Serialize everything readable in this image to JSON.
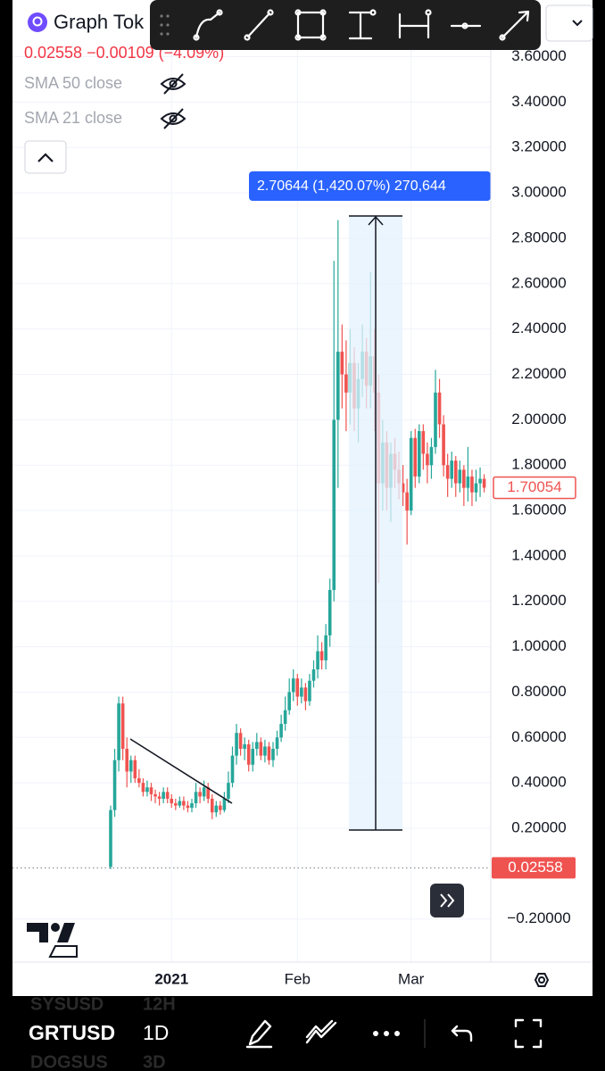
{
  "header": {
    "symbol": "Graph Tok",
    "quote": "0.02558 −0.00109 (−4.09%)",
    "indicators": [
      "SMA 50 close",
      "SMA 21 close"
    ]
  },
  "bottom_bar": {
    "symbol": "GRTUSD",
    "interval": "1D",
    "ghost_rows": [
      [
        "SYSUSD",
        "12H"
      ],
      [
        "DOGSUS",
        "3D"
      ]
    ]
  },
  "chart_data": {
    "type": "candlestick",
    "up_color": "#26a69a",
    "down_color": "#ef5350",
    "grid": true,
    "categories": [
      null,
      null,
      null,
      null,
      null,
      null,
      null,
      null,
      null,
      null,
      null,
      null,
      null,
      null,
      null,
      "2021",
      null,
      null,
      null,
      null,
      null,
      null,
      null,
      null,
      null,
      null,
      null,
      null,
      null,
      null,
      null,
      null,
      null,
      null,
      null,
      null,
      null,
      null,
      null,
      null,
      null,
      null,
      null,
      null,
      null,
      null,
      "Feb",
      null,
      null,
      null,
      null,
      null,
      null,
      null,
      null,
      null,
      null,
      null,
      null,
      null,
      null,
      null,
      null,
      null,
      null,
      null,
      null,
      null,
      null,
      null,
      null,
      null,
      null,
      null,
      "Mar",
      null,
      null,
      null,
      null,
      null,
      null,
      null,
      null,
      null,
      null,
      null,
      null,
      null,
      null,
      null,
      null,
      null,
      null
    ],
    "open": [
      0.03,
      0.28,
      0.5,
      0.75,
      0.55,
      0.45,
      0.5,
      0.42,
      0.4,
      0.36,
      0.38,
      0.35,
      0.34,
      0.33,
      0.36,
      0.33,
      0.31,
      0.3,
      0.32,
      0.3,
      0.29,
      0.31,
      0.36,
      0.34,
      0.38,
      0.33,
      0.27,
      0.3,
      0.28,
      0.33,
      0.4,
      0.52,
      0.62,
      0.55,
      0.57,
      0.48,
      0.55,
      0.58,
      0.52,
      0.56,
      0.5,
      0.55,
      0.6,
      0.66,
      0.72,
      0.8,
      0.86,
      0.78,
      0.82,
      0.76,
      0.85,
      0.9,
      0.98,
      0.94,
      1.05,
      1.25,
      2.0,
      2.3,
      2.2,
      2.12,
      2.25,
      2.05,
      2.18,
      2.3,
      2.15,
      2.28,
      2.12,
      1.72,
      1.9,
      1.7,
      1.85,
      1.78,
      1.72,
      1.68,
      1.6,
      1.92,
      1.75,
      1.95,
      1.85,
      1.8,
      1.88,
      2.12,
      1.98,
      1.8,
      1.74,
      1.82,
      1.72,
      1.78,
      1.7,
      1.75,
      1.68,
      1.72,
      1.74
    ],
    "high": [
      0.3,
      0.55,
      0.78,
      0.78,
      0.6,
      0.52,
      0.52,
      0.46,
      0.42,
      0.41,
      0.4,
      0.37,
      0.36,
      0.38,
      0.38,
      0.35,
      0.33,
      0.34,
      0.34,
      0.32,
      0.33,
      0.4,
      0.38,
      0.41,
      0.4,
      0.35,
      0.32,
      0.32,
      0.36,
      0.45,
      0.56,
      0.66,
      0.64,
      0.6,
      0.59,
      0.58,
      0.62,
      0.6,
      0.59,
      0.58,
      0.58,
      0.63,
      0.7,
      0.78,
      0.86,
      0.9,
      0.88,
      0.86,
      0.84,
      0.88,
      0.94,
      1.05,
      1.02,
      1.1,
      1.3,
      2.7,
      2.88,
      2.42,
      2.35,
      2.4,
      2.32,
      2.25,
      2.42,
      2.36,
      2.65,
      2.4,
      2.2,
      2.0,
      1.95,
      1.9,
      1.92,
      1.86,
      1.8,
      1.74,
      1.95,
      1.96,
      1.98,
      1.98,
      1.9,
      1.92,
      2.22,
      2.18,
      2.02,
      1.85,
      1.86,
      1.84,
      1.82,
      1.8,
      1.88,
      1.78,
      1.78,
      1.79,
      1.76
    ],
    "low": [
      0.02,
      0.25,
      0.45,
      0.5,
      0.38,
      0.4,
      0.4,
      0.38,
      0.34,
      0.34,
      0.32,
      0.31,
      0.3,
      0.31,
      0.31,
      0.29,
      0.28,
      0.29,
      0.28,
      0.27,
      0.27,
      0.29,
      0.31,
      0.32,
      0.31,
      0.24,
      0.25,
      0.26,
      0.27,
      0.31,
      0.38,
      0.48,
      0.52,
      0.5,
      0.45,
      0.45,
      0.52,
      0.5,
      0.49,
      0.48,
      0.47,
      0.52,
      0.58,
      0.63,
      0.7,
      0.76,
      0.74,
      0.75,
      0.72,
      0.74,
      0.82,
      0.86,
      0.9,
      0.9,
      1.0,
      1.2,
      1.7,
      2.05,
      1.95,
      1.98,
      1.95,
      1.9,
      2.1,
      2.05,
      2.05,
      1.95,
      1.28,
      1.6,
      1.6,
      1.55,
      1.7,
      1.65,
      1.62,
      1.45,
      1.58,
      1.7,
      1.72,
      1.78,
      1.72,
      1.74,
      1.85,
      1.92,
      1.75,
      1.66,
      1.7,
      1.66,
      1.68,
      1.62,
      1.64,
      1.62,
      1.64,
      1.66,
      1.68
    ],
    "close": [
      0.28,
      0.5,
      0.75,
      0.55,
      0.45,
      0.5,
      0.42,
      0.4,
      0.36,
      0.38,
      0.35,
      0.34,
      0.33,
      0.36,
      0.33,
      0.31,
      0.3,
      0.32,
      0.3,
      0.29,
      0.31,
      0.36,
      0.34,
      0.38,
      0.33,
      0.27,
      0.3,
      0.28,
      0.33,
      0.4,
      0.52,
      0.62,
      0.55,
      0.57,
      0.48,
      0.55,
      0.58,
      0.52,
      0.56,
      0.5,
      0.55,
      0.6,
      0.66,
      0.72,
      0.8,
      0.86,
      0.78,
      0.82,
      0.76,
      0.85,
      0.9,
      0.98,
      0.94,
      1.05,
      1.25,
      2.0,
      2.3,
      2.2,
      2.12,
      2.25,
      2.05,
      2.18,
      2.3,
      2.15,
      2.28,
      2.12,
      1.72,
      1.9,
      1.7,
      1.85,
      1.78,
      1.72,
      1.68,
      1.6,
      1.92,
      1.75,
      1.95,
      1.85,
      1.8,
      1.88,
      2.12,
      1.98,
      1.8,
      1.74,
      1.82,
      1.72,
      1.78,
      1.7,
      1.75,
      1.68,
      1.72,
      1.74,
      1.70054
    ],
    "ylim": [
      -0.39,
      3.85
    ],
    "yticks": [
      {
        "value": -0.2,
        "label": "−0.20000"
      },
      {
        "value": 0.2,
        "label": "0.20000"
      },
      {
        "value": 0.4,
        "label": "0.40000"
      },
      {
        "value": 0.6,
        "label": "0.60000"
      },
      {
        "value": 0.8,
        "label": "0.80000"
      },
      {
        "value": 1.0,
        "label": "1.00000"
      },
      {
        "value": 1.2,
        "label": "1.20000"
      },
      {
        "value": 1.4,
        "label": "1.40000"
      },
      {
        "value": 1.6,
        "label": "1.60000"
      },
      {
        "value": 1.8,
        "label": "1.80000"
      },
      {
        "value": 2.0,
        "label": "2.00000"
      },
      {
        "value": 2.2,
        "label": "2.20000"
      },
      {
        "value": 2.4,
        "label": "2.40000"
      },
      {
        "value": 2.6,
        "label": "2.60000"
      },
      {
        "value": 2.8,
        "label": "2.80000"
      },
      {
        "value": 3.0,
        "label": "3.00000"
      },
      {
        "value": 3.2,
        "label": "3.20000"
      },
      {
        "value": 3.4,
        "label": "3.40000"
      },
      {
        "value": 3.6,
        "label": "3.60000"
      }
    ],
    "price_labels": [
      {
        "value": 1.70054,
        "style": "outline"
      },
      {
        "value": 0.02558,
        "style": "filled"
      }
    ],
    "measure_label": "2.70644 (1,420.07%) 270,644"
  }
}
